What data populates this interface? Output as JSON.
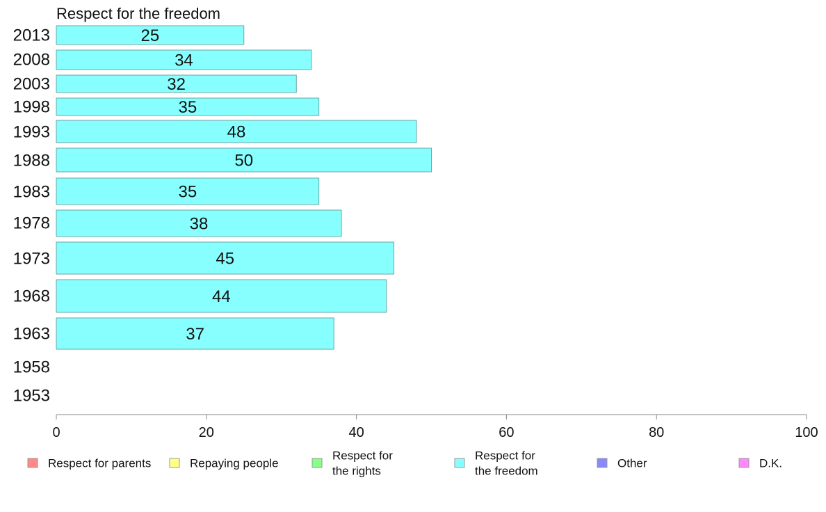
{
  "chart_data": {
    "type": "bar",
    "orientation": "horizontal",
    "title": "Respect for the freedom",
    "categories": [
      "2013",
      "2008",
      "2003",
      "1998",
      "1993",
      "1988",
      "1983",
      "1978",
      "1973",
      "1968",
      "1963",
      "1958",
      "1953"
    ],
    "series": [
      {
        "name": "Respect for the freedom",
        "values": [
          25,
          34,
          32,
          35,
          48,
          50,
          35,
          38,
          45,
          44,
          37,
          null,
          null
        ]
      }
    ],
    "xlim": [
      0,
      100
    ],
    "xticks": [
      0,
      20,
      40,
      60,
      80,
      100
    ],
    "grid": false,
    "legend_position": "bottom",
    "bar_color": "#88ffff",
    "bar_stroke": "#6aa6a6"
  },
  "legend": [
    {
      "label": "Respect for parents",
      "color": "#ff8888"
    },
    {
      "label": "Repaying people",
      "color": "#ffff88"
    },
    {
      "label": "Respect for\nthe rights",
      "color": "#88ff88"
    },
    {
      "label": "Respect for\nthe freedom",
      "color": "#88ffff"
    },
    {
      "label": "Other",
      "color": "#8888ff"
    },
    {
      "label": "D.K.",
      "color": "#ff88ff"
    }
  ]
}
